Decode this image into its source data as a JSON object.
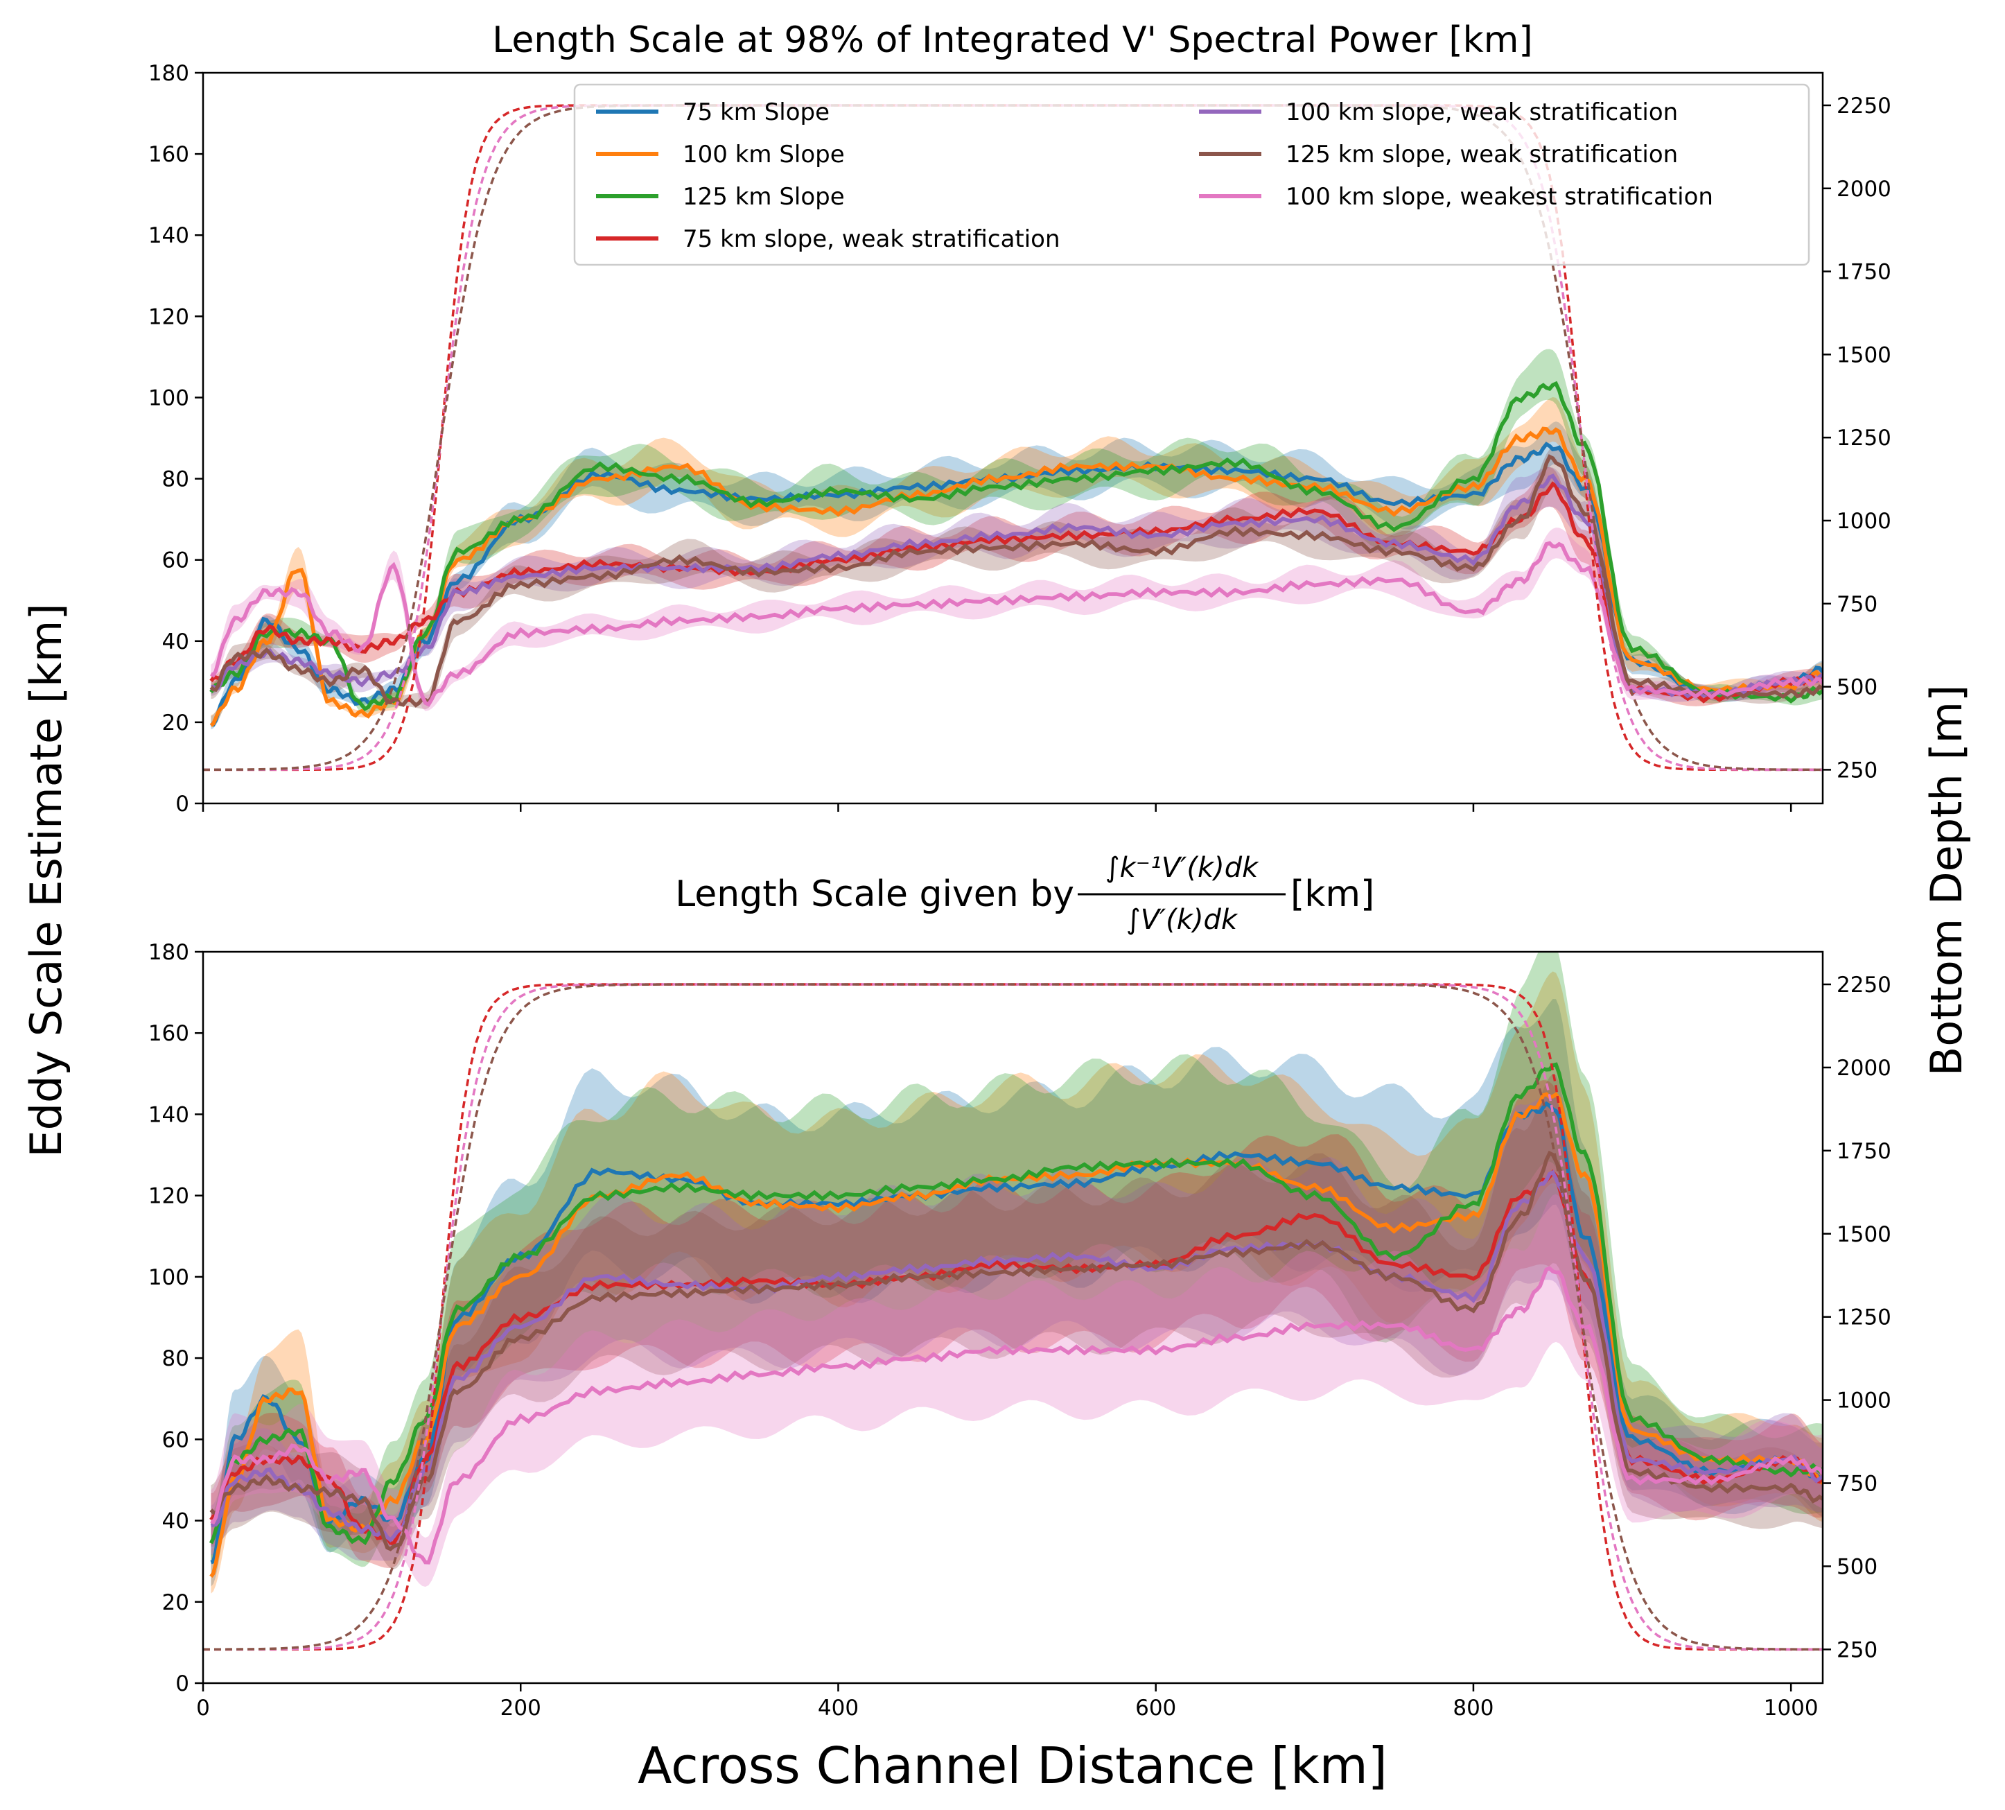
{
  "chart_data": {
    "type": "line",
    "shared": {
      "xlabel": "Across Channel Distance [km]",
      "ylabel": "Eddy Scale Estimate [km]",
      "y2label": "Bottom Depth [m]",
      "xlim": [
        0,
        1020
      ],
      "ylim": [
        0,
        180
      ],
      "y2lim": [
        148.6,
        2348
      ],
      "xticks": [
        0,
        200,
        400,
        600,
        800,
        1000
      ],
      "yticks": [
        0,
        20,
        40,
        60,
        80,
        100,
        120,
        140,
        160,
        180
      ],
      "y2ticks": [
        250,
        500,
        750,
        1000,
        1250,
        1500,
        1750,
        2000,
        2250
      ],
      "x": [
        5,
        20,
        40,
        60,
        80,
        100,
        120,
        140,
        160,
        200,
        250,
        300,
        350,
        400,
        450,
        500,
        550,
        600,
        650,
        700,
        750,
        800,
        830,
        850,
        870,
        900,
        950,
        1000,
        1020
      ]
    },
    "legend": {
      "placement": "top-right",
      "entries": [
        {
          "name": "75 km Slope",
          "color": "#1f77b4"
        },
        {
          "name": "100 km Slope",
          "color": "#ff7f0e"
        },
        {
          "name": "125 km Slope",
          "color": "#2ca02c"
        },
        {
          "name": "75 km slope, weak stratification",
          "color": "#d62728"
        },
        {
          "name": "100 km slope, weak stratification",
          "color": "#9467bd"
        },
        {
          "name": "125 km slope, weak stratification",
          "color": "#8c564b"
        },
        {
          "name": "100 km slope, weakest stratification",
          "color": "#e377c2"
        }
      ]
    },
    "depth_profiles": {
      "shelf_depth_m": 250,
      "deep_depth_m": 2250,
      "slope_centers_km": [
        150,
        868
      ],
      "profiles": [
        {
          "slope_width_km": 75,
          "color": "#d62728"
        },
        {
          "slope_width_km": 100,
          "color": "#e377c2"
        },
        {
          "slope_width_km": 125,
          "color": "#8c564b"
        }
      ]
    },
    "panels": [
      {
        "title": "Length Scale at 98% of Integrated V' Spectral Power [km]",
        "band_fraction": 0.06,
        "series": [
          {
            "name": "75 km Slope",
            "values": [
              20,
              30,
              45,
              38,
              28,
              25,
              28,
              40,
              55,
              70,
              81,
              77,
              75,
              76,
              78,
              80,
              82,
              83,
              82,
              80,
              74,
              76,
              85,
              88,
              78,
              35,
              27,
              30,
              33
            ]
          },
          {
            "name": "100 km Slope",
            "values": [
              20,
              28,
              40,
              58,
              25,
              22,
              25,
              42,
              60,
              70,
              80,
              83,
              73,
              72,
              76,
              80,
              83,
              83,
              80,
              78,
              72,
              78,
              90,
              92,
              80,
              35,
              28,
              29,
              32
            ]
          },
          {
            "name": "125 km Slope",
            "values": [
              28,
              32,
              42,
              42,
              40,
              24,
              26,
              42,
              62,
              70,
              83,
              80,
              74,
              77,
              75,
              78,
              80,
              82,
              84,
              77,
              68,
              80,
              100,
              103,
              88,
              38,
              27,
              26,
              28
            ]
          },
          {
            "name": "75 km slope, weak stratification",
            "values": [
              30,
              35,
              43,
              40,
              40,
              38,
              40,
              45,
              52,
              57,
              59,
              58,
              57,
              60,
              63,
              65,
              66,
              67,
              70,
              72,
              64,
              62,
              70,
              78,
              65,
              28,
              26,
              30,
              31
            ]
          },
          {
            "name": "100 km slope, weak stratification",
            "values": [
              28,
              34,
              37,
              35,
              32,
              30,
              32,
              38,
              52,
              56,
              58,
              58,
              58,
              61,
              64,
              66,
              68,
              66,
              69,
              70,
              64,
              60,
              74,
              80,
              70,
              28,
              27,
              30,
              31
            ]
          },
          {
            "name": "125 km slope, weak stratification",
            "values": [
              28,
              36,
              37,
              33,
              30,
              33,
              25,
              25,
              45,
              54,
              56,
              60,
              57,
              58,
              62,
              63,
              64,
              62,
              67,
              66,
              62,
              58,
              70,
              85,
              72,
              30,
              27,
              27,
              28
            ]
          },
          {
            "name": "100 km slope, weakest stratification",
            "values": [
              32,
              45,
              52,
              52,
              42,
              38,
              58,
              25,
              32,
              42,
              43,
              45,
              46,
              48,
              49,
              50,
              51,
              52,
              52,
              54,
              55,
              47,
              55,
              64,
              58,
              28,
              27,
              30,
              30
            ]
          }
        ]
      },
      {
        "title_prefix": "Length Scale given by ",
        "title_numerator": "∫k⁻¹V′(k)dk",
        "title_denominator": "∫V′(k)dk",
        "title_suffix": "[km]",
        "band_fraction": 0.18,
        "series": [
          {
            "name": "75 km Slope",
            "values": [
              30,
              60,
              70,
              60,
              40,
              45,
              40,
              55,
              90,
              105,
              126,
              124,
              118,
              118,
              120,
              122,
              123,
              127,
              130,
              128,
              122,
              120,
              140,
              142,
              110,
              60,
              52,
              55,
              50
            ]
          },
          {
            "name": "100 km Slope",
            "values": [
              27,
              50,
              70,
              72,
              40,
              38,
              45,
              60,
              88,
              100,
              120,
              125,
              118,
              117,
              120,
              124,
              125,
              128,
              128,
              122,
              112,
              115,
              140,
              145,
              125,
              62,
              55,
              55,
              50
            ]
          },
          {
            "name": "125 km Slope",
            "values": [
              35,
              55,
              60,
              62,
              38,
              35,
              50,
              65,
              92,
              105,
              120,
              122,
              120,
              120,
              122,
              124,
              127,
              128,
              128,
              120,
              105,
              118,
              145,
              152,
              130,
              65,
              55,
              52,
              53
            ]
          },
          {
            "name": "75 km slope, weak stratification",
            "values": [
              40,
              52,
              55,
              55,
              50,
              38,
              35,
              55,
              78,
              90,
              98,
              98,
              99,
              98,
              100,
              103,
              102,
              103,
              110,
              115,
              103,
              100,
              120,
              125,
              100,
              55,
              50,
              55,
              50
            ]
          },
          {
            "name": "100 km slope, weak stratification",
            "values": [
              38,
              50,
              52,
              48,
              42,
              38,
              36,
              52,
              75,
              88,
              100,
              98,
              97,
              100,
              102,
              104,
              105,
              102,
              107,
              108,
              100,
              95,
              118,
              125,
              105,
              55,
              52,
              55,
              50
            ]
          },
          {
            "name": "125 km slope, weak stratification",
            "values": [
              42,
              48,
              50,
              48,
              47,
              45,
              33,
              50,
              72,
              85,
              95,
              96,
              97,
              98,
              100,
              101,
              102,
              103,
              106,
              108,
              100,
              92,
              115,
              130,
              100,
              52,
              48,
              48,
              45
            ]
          },
          {
            "name": "100 km slope, weakest stratification",
            "values": [
              40,
              55,
              55,
              58,
              50,
              52,
              40,
              30,
              50,
              65,
              72,
              74,
              76,
              78,
              80,
              82,
              82,
              82,
              85,
              88,
              88,
              82,
              92,
              102,
              88,
              50,
              50,
              55,
              52
            ]
          }
        ]
      }
    ]
  }
}
